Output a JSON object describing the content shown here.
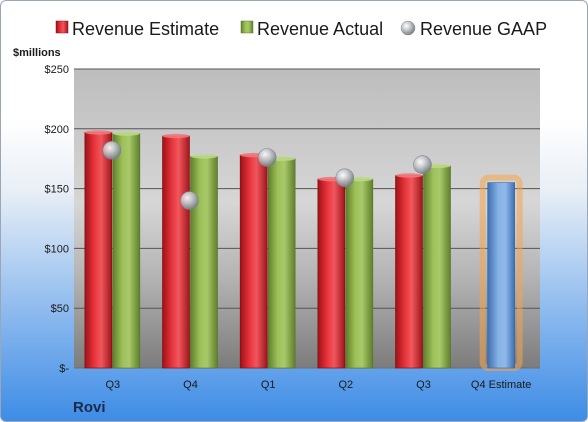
{
  "chart_data": {
    "type": "bar",
    "unit_label": "$millions",
    "company": "Rovi",
    "categories": [
      "Q3",
      "Q4",
      "Q1",
      "Q2",
      "Q3",
      "Q4 Estimate"
    ],
    "y_ticks": [
      "$250",
      "$200",
      "$150",
      "$100",
      "$50",
      "$-"
    ],
    "ylim": [
      0,
      250
    ],
    "grid": true,
    "legend_position": "top",
    "series": [
      {
        "name": "Revenue Estimate",
        "kind": "bar",
        "color": "#d9242c",
        "values": [
          197,
          194,
          178,
          158,
          161,
          null
        ]
      },
      {
        "name": "Revenue Actual",
        "kind": "bar",
        "color": "#8cae4a",
        "values": [
          196,
          177,
          175,
          158,
          169,
          null
        ]
      },
      {
        "name": "Revenue GAAP",
        "kind": "marker",
        "color": "#b9bcc2",
        "values": [
          182,
          140,
          176,
          159,
          170,
          null
        ]
      }
    ],
    "estimate_bar": {
      "category": "Q4 Estimate",
      "value": 155,
      "color": "#6f9fd8",
      "glow": "#f5a64a"
    }
  }
}
